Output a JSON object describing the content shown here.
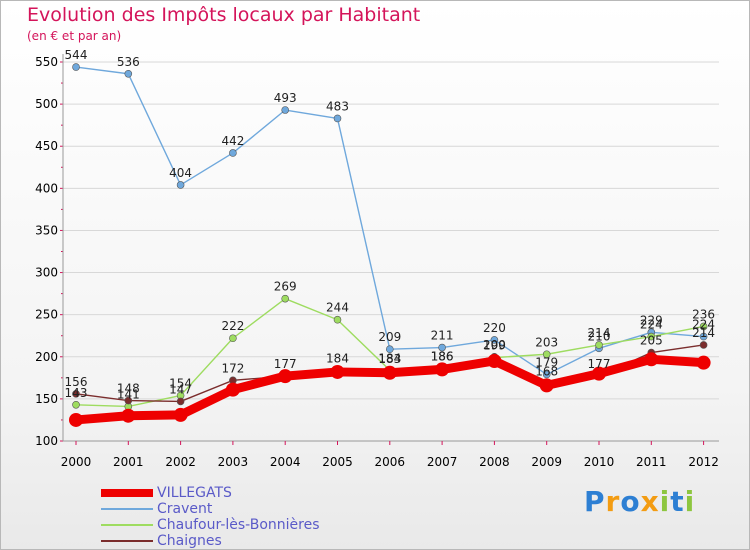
{
  "title": "Evolution des Impôts locaux par Habitant",
  "subtitle": "(en € et par an)",
  "logo": {
    "text": "Proxiti",
    "letters": [
      "P",
      "r",
      "o",
      "x",
      "i",
      "t",
      "i"
    ],
    "colors": [
      "#2d7fd3",
      "#f39c12",
      "#2d7fd3",
      "#f39c12",
      "#8dc63f",
      "#2d7fd3",
      "#8dc63f"
    ]
  },
  "chart_data": {
    "type": "line",
    "title": "Evolution des Impôts locaux par Habitant",
    "subtitle": "(en € et par an)",
    "xlabel": "",
    "ylabel": "",
    "ylim": [
      100,
      550
    ],
    "yticks": [
      100,
      150,
      200,
      250,
      300,
      350,
      400,
      450,
      500,
      550
    ],
    "grid": "horizontal",
    "categories": [
      "2000",
      "2001",
      "2002",
      "2003",
      "2004",
      "2005",
      "2006",
      "2007",
      "2008",
      "2009",
      "2010",
      "2011",
      "2012"
    ],
    "series": [
      {
        "name": "VILLEGATS",
        "color": "#ee0000",
        "width": 9,
        "marker": 7,
        "values": [
          125,
          130,
          131,
          161,
          177,
          182,
          181,
          185,
          195,
          166,
          180,
          197,
          193
        ],
        "labels": false
      },
      {
        "name": "Cravent",
        "color": "#6fa8dc",
        "width": 1.4,
        "marker": 3.5,
        "values": [
          544,
          536,
          404,
          442,
          493,
          483,
          209,
          211,
          220,
          179,
          210,
          229,
          224
        ],
        "labels": true
      },
      {
        "name": "Chaufour-lès-Bonnières",
        "color": "#9edc60",
        "width": 1.4,
        "marker": 3.5,
        "values": [
          143,
          141,
          154,
          222,
          269,
          244,
          184,
          186,
          199,
          203,
          214,
          224,
          236
        ],
        "labels": true
      },
      {
        "name": "Chaignes",
        "color": "#7b2d2d",
        "width": 1.4,
        "marker": 3.5,
        "values": [
          156,
          148,
          147,
          172,
          177,
          184,
          183,
          186,
          200,
          168,
          177,
          205,
          214
        ],
        "labels": true
      }
    ],
    "legend": "bottom-left"
  }
}
